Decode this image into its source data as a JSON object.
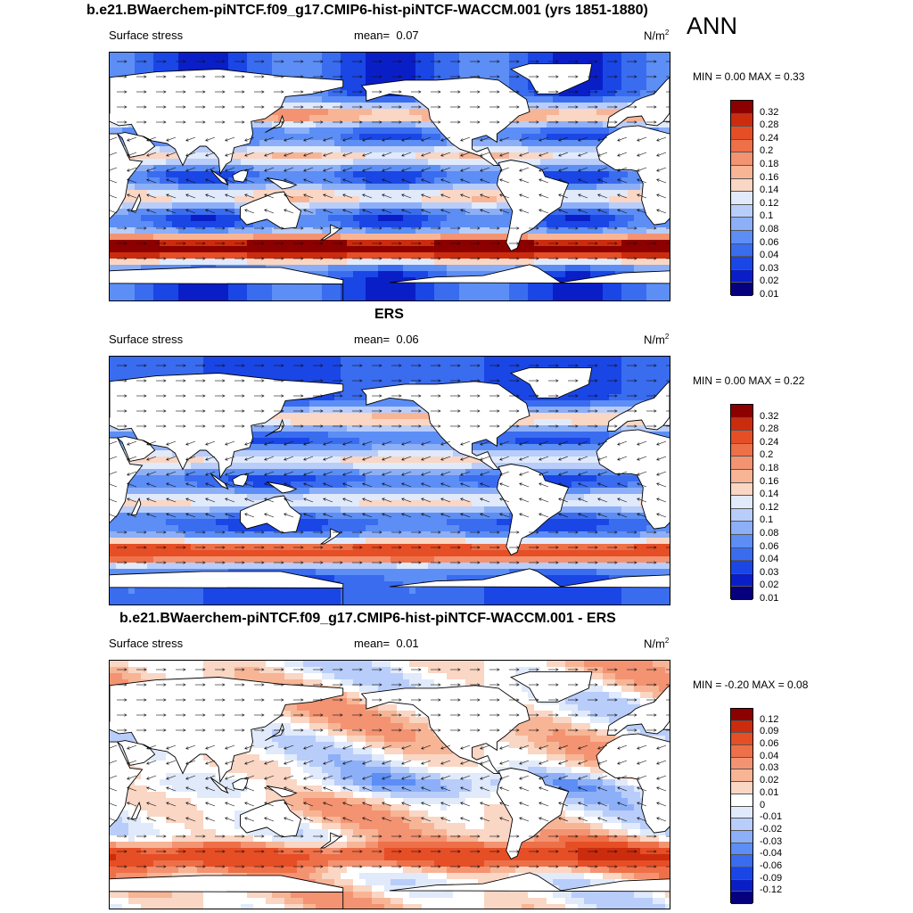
{
  "page": {
    "main_title": "b.e21.BWaerchem-piNTCF.f09_g17.CMIP6-hist-piNTCF-WACCM.001 (yrs 1851-1880)",
    "season": "ANN"
  },
  "colors": {
    "abs_scale": [
      "#06007e",
      "#0a1ec8",
      "#1a46e6",
      "#3a6cf0",
      "#5c8ef5",
      "#8caff8",
      "#b9cdfa",
      "#e0eafb",
      "#fad6c4",
      "#f7b596",
      "#f39372",
      "#ee7048",
      "#e64e26",
      "#cc2c0e",
      "#8c0000"
    ],
    "diff_scale": [
      "#06007e",
      "#0a1ec8",
      "#1a46e6",
      "#3a6cf0",
      "#5c8ef5",
      "#8caff8",
      "#b9cdfa",
      "#e0eafb",
      "#ffffff",
      "#fad6c4",
      "#f7b596",
      "#f39372",
      "#ee7048",
      "#e64e26",
      "#cc2c0e",
      "#8c0000"
    ]
  },
  "panels": [
    {
      "title": "",
      "variable": "Surface stress",
      "mean_label": "mean=",
      "mean_value": "0.07",
      "units": "N/m",
      "units_sup": "2",
      "minmax": "MIN =   0.00 MAX =   0.33",
      "scale": "abs",
      "bar_labels": [
        "0.32",
        "0.28",
        "0.24",
        "0.2",
        "0.18",
        "0.16",
        "0.14",
        "0.12",
        "0.1",
        "0.08",
        "0.06",
        "0.04",
        "0.03",
        "0.02",
        "0.01"
      ]
    },
    {
      "title": "ERS",
      "variable": "Surface stress",
      "mean_label": "mean=",
      "mean_value": "0.06",
      "units": "N/m",
      "units_sup": "2",
      "minmax": "MIN =   0.00 MAX =   0.22",
      "scale": "abs",
      "bar_labels": [
        "0.32",
        "0.28",
        "0.24",
        "0.2",
        "0.18",
        "0.16",
        "0.14",
        "0.12",
        "0.1",
        "0.08",
        "0.06",
        "0.04",
        "0.03",
        "0.02",
        "0.01"
      ]
    },
    {
      "title": "b.e21.BWaerchem-piNTCF.f09_g17.CMIP6-hist-piNTCF-WACCM.001 - ERS",
      "variable": "Surface stress",
      "mean_label": "mean=",
      "mean_value": "0.01",
      "units": "N/m",
      "units_sup": "2",
      "minmax": "MIN = -0.20 MAX =   0.08",
      "scale": "diff",
      "bar_labels": [
        "0.12",
        "0.09",
        "0.06",
        "0.04",
        "0.03",
        "0.02",
        "0.01",
        "0",
        "-0.01",
        "-0.02",
        "-0.03",
        "-0.04",
        "-0.06",
        "-0.09",
        "-0.12"
      ]
    }
  ]
}
